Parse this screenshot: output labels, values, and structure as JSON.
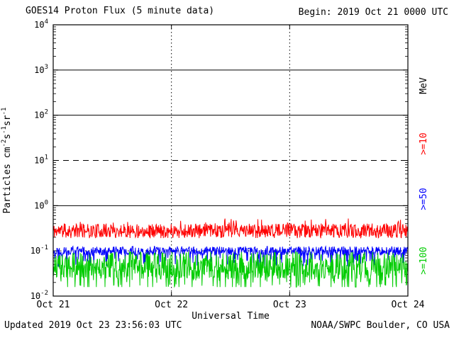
{
  "chart_data": {
    "type": "line",
    "title": "GOES14 Proton Flux (5 minute data)",
    "begin_label": "Begin: 2019 Oct 21 0000 UTC",
    "updated_label": "Updated 2019 Oct 23 23:56:03 UTC",
    "source_label": "NOAA/SWPC Boulder, CO USA",
    "xlabel": "Universal Time",
    "ylabel": "Particles cm⁻²s⁻¹sr⁻¹",
    "ylabel_parts": [
      {
        "t": "Particles cm"
      },
      {
        "t": "-2",
        "sup": true
      },
      {
        "t": "s"
      },
      {
        "t": "-1",
        "sup": true
      },
      {
        "t": "sr"
      },
      {
        "t": "-1",
        "sup": true
      }
    ],
    "x_ticks": [
      "Oct 21",
      "Oct 22",
      "Oct 23",
      "Oct 24"
    ],
    "x_range_days": 3,
    "y_scale": "log10",
    "y_ticks": [
      "10^4",
      "10^3",
      "10^2",
      "10^1",
      "10^0",
      "10^-1",
      "10^-2"
    ],
    "y_tick_exponents": [
      4,
      3,
      2,
      1,
      0,
      -1,
      -2
    ],
    "y_exponent_range": [
      -2,
      4
    ],
    "ylim": [
      0.01,
      10000
    ],
    "grid": {
      "h_lines": [
        {
          "exp": 3,
          "style": "solid"
        },
        {
          "exp": 2,
          "style": "solid"
        },
        {
          "exp": 1,
          "style": "dashed"
        },
        {
          "exp": 0,
          "style": "solid"
        },
        {
          "exp": -1,
          "style": "dotted"
        }
      ],
      "v_lines": [
        {
          "day": 1,
          "style": "dotted",
          "label": "Oct 22"
        },
        {
          "day": 2,
          "style": "dotted",
          "label": "Oct 23"
        }
      ]
    },
    "right_axis_labels": [
      {
        "text": "MeV",
        "color": "#000000"
      },
      {
        "text": ">=10",
        "color": "#ff0000"
      },
      {
        "text": ">=50",
        "color": "#0000ff"
      },
      {
        "text": ">=100",
        "color": "#00cc00"
      }
    ],
    "series": [
      {
        "name": ">=10 MeV",
        "color": "#ff0000",
        "points_per_day": 288,
        "cadence_minutes": 5,
        "log10_mean": -0.56,
        "log10_noise": 0.16,
        "spike_prob": 0.08,
        "spike_delta": 0.12,
        "clamp": [
          -0.8,
          -0.28
        ],
        "approx_flux_range": [
          0.15,
          0.5
        ],
        "approx_flux_median": 0.27,
        "seed": 11
      },
      {
        "name": ">=50 MeV",
        "color": "#0000ff",
        "points_per_day": 288,
        "cadence_minutes": 5,
        "log10_mean": -1.0,
        "log10_noise": 0.1,
        "spike_prob": 0.1,
        "spike_delta": -0.25,
        "clamp": [
          -1.4,
          -0.75
        ],
        "approx_flux_range": [
          0.05,
          0.15
        ],
        "approx_flux_median": 0.1,
        "seed": 22
      },
      {
        "name": ">=100 MeV",
        "color": "#00cc00",
        "points_per_day": 288,
        "cadence_minutes": 5,
        "log10_mean": -1.32,
        "log10_noise": 0.3,
        "spike_prob": 0.25,
        "spike_delta": -0.3,
        "clamp": [
          -1.8,
          -0.9
        ],
        "approx_flux_range": [
          0.02,
          0.12
        ],
        "approx_flux_median": 0.05,
        "seed": 33
      }
    ]
  }
}
